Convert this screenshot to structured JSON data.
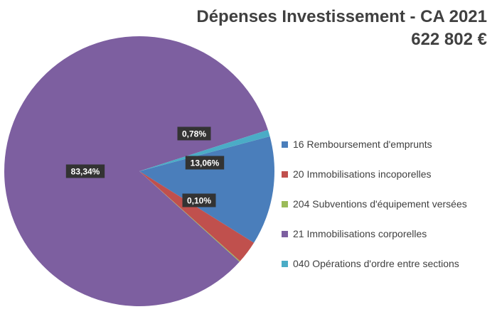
{
  "header": {
    "title": "Dépenses Investissement - CA 2021",
    "total": "622 802 €"
  },
  "chart_data": {
    "type": "pie",
    "title": "Dépenses Investissement - CA 2021",
    "subtitle": "622 802 €",
    "categories": [
      "16 Remboursement d'emprunts",
      "20 Immobilisations incoporelles",
      "204 Subventions d'équipement versées",
      "21 Immobilisations corporelles",
      "040 Opérations d'ordre entre sections"
    ],
    "values": [
      13.06,
      2.72,
      0.1,
      83.34,
      0.78
    ],
    "labels": [
      "13,06%",
      "",
      "0,10%",
      "83,34%",
      "0,78%"
    ],
    "colors": [
      "#4a7ebb",
      "#c0504d",
      "#9bbb59",
      "#7d5fa0",
      "#4bacc6"
    ],
    "label_background": "#333333",
    "legend_position": "right"
  }
}
